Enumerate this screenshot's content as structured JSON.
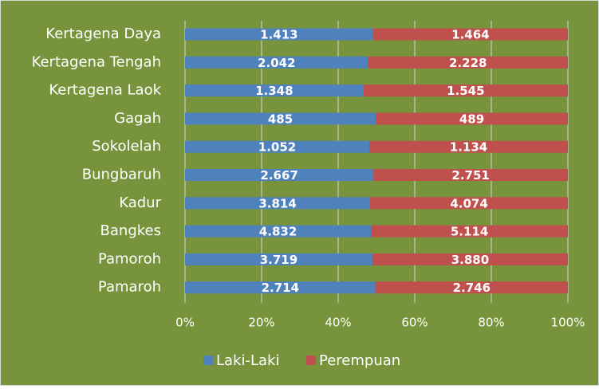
{
  "chart_data": {
    "type": "bar",
    "orientation": "horizontal",
    "stack": "percent",
    "categories": [
      "Kertagena Daya",
      "Kertagena Tengah",
      "Kertagena Laok",
      "Gagah",
      "Sokolelah",
      "Bungbaruh",
      "Kadur",
      "Bangkes",
      "Pamoroh",
      "Pamaroh"
    ],
    "series": [
      {
        "name": "Laki-Laki",
        "color": "#4f81bd",
        "values": [
          1413,
          2042,
          1348,
          485,
          1052,
          2667,
          3814,
          4832,
          3719,
          2714
        ],
        "value_labels": [
          "1.413",
          "2.042",
          "1.348",
          "485",
          "1.052",
          "2.667",
          "3.814",
          "4.832",
          "3.719",
          "2.714"
        ]
      },
      {
        "name": "Perempuan",
        "color": "#c0504d",
        "values": [
          1464,
          2228,
          1545,
          489,
          1134,
          2751,
          4074,
          5114,
          3880,
          2746
        ],
        "value_labels": [
          "1.464",
          "2.228",
          "1.545",
          "489",
          "1.134",
          "2.751",
          "4.074",
          "5.114",
          "3.880",
          "2.746"
        ]
      }
    ],
    "xlim": [
      0,
      100
    ],
    "xticks": [
      {
        "value": 0,
        "label": "0%"
      },
      {
        "value": 20,
        "label": "20%"
      },
      {
        "value": 40,
        "label": "40%"
      },
      {
        "value": 60,
        "label": "60%"
      },
      {
        "value": 80,
        "label": "80%"
      },
      {
        "value": 100,
        "label": "100%"
      }
    ],
    "grid": true,
    "legend": "bottom",
    "background": "#77933c"
  }
}
